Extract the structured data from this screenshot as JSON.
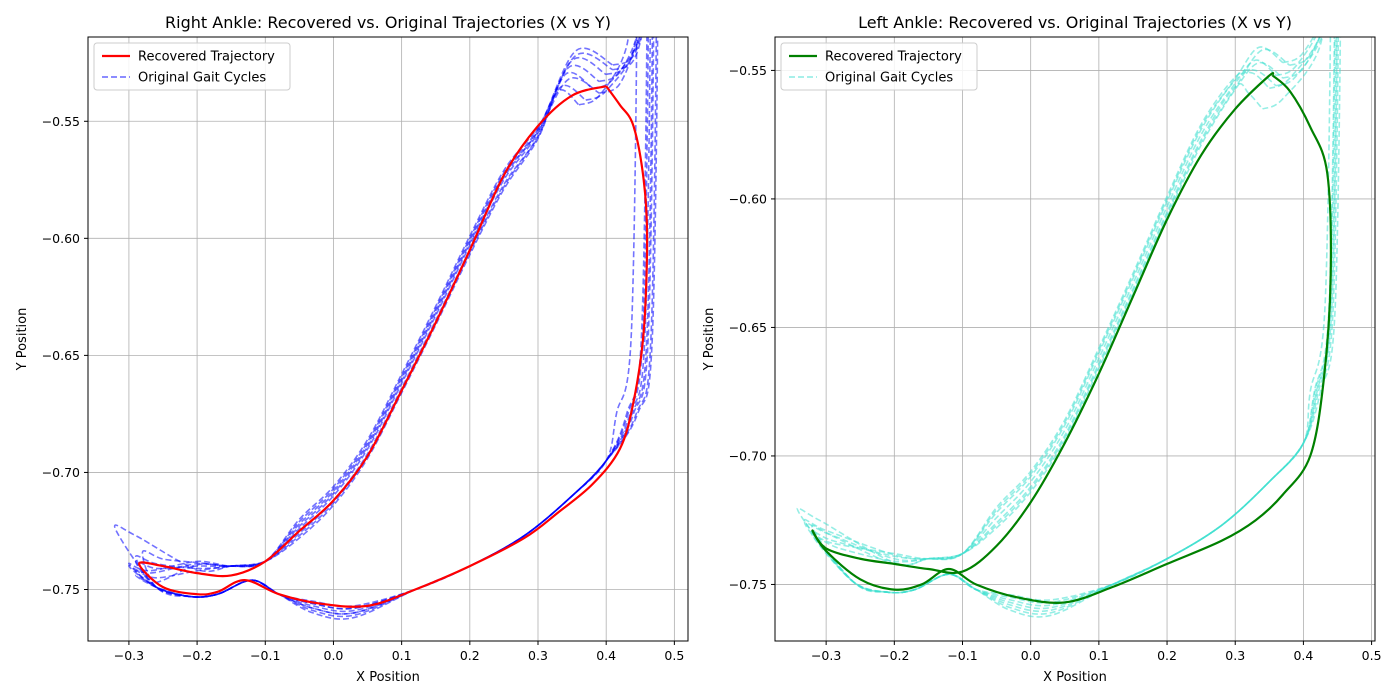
{
  "chart_data": [
    {
      "type": "line",
      "title": "Right Ankle: Recovered vs. Original Trajectories (X vs Y)",
      "xlabel": "X Position",
      "ylabel": "Y Position",
      "xlim": [
        -0.36,
        0.52
      ],
      "ylim": [
        -0.772,
        -0.514
      ],
      "xticks": [
        "−0.3",
        "−0.2",
        "−0.1",
        "0.0",
        "0.1",
        "0.2",
        "0.3",
        "0.4",
        "0.5"
      ],
      "xtick_values": [
        -0.3,
        -0.2,
        -0.1,
        0.0,
        0.1,
        0.2,
        0.3,
        0.4,
        0.5
      ],
      "yticks": [
        "−0.75",
        "−0.70",
        "−0.65",
        "−0.60",
        "−0.55"
      ],
      "ytick_values": [
        -0.75,
        -0.7,
        -0.65,
        -0.6,
        -0.55
      ],
      "grid": true,
      "legend_position": "top-left",
      "legend": [
        "Recovered Trajectory",
        "Original Gait Cycles"
      ],
      "series": [
        {
          "name": "Recovered Trajectory",
          "color": "#ff0000",
          "style": "solid",
          "points": [
            [
              0.4,
              -0.535
            ],
            [
              0.42,
              -0.543
            ],
            [
              0.44,
              -0.552
            ],
            [
              0.455,
              -0.575
            ],
            [
              0.46,
              -0.6
            ],
            [
              0.455,
              -0.64
            ],
            [
              0.44,
              -0.67
            ],
            [
              0.42,
              -0.69
            ],
            [
              0.38,
              -0.705
            ],
            [
              0.33,
              -0.717
            ],
            [
              0.28,
              -0.728
            ],
            [
              0.2,
              -0.74
            ],
            [
              0.12,
              -0.75
            ],
            [
              0.05,
              -0.757
            ],
            [
              -0.02,
              -0.756
            ],
            [
              -0.08,
              -0.752
            ],
            [
              -0.13,
              -0.746
            ],
            [
              -0.17,
              -0.751
            ],
            [
              -0.2,
              -0.752
            ],
            [
              -0.25,
              -0.749
            ],
            [
              -0.285,
              -0.739
            ],
            [
              -0.25,
              -0.74
            ],
            [
              -0.2,
              -0.743
            ],
            [
              -0.15,
              -0.744
            ],
            [
              -0.1,
              -0.738
            ],
            [
              -0.05,
              -0.725
            ],
            [
              0.0,
              -0.712
            ],
            [
              0.05,
              -0.693
            ],
            [
              0.1,
              -0.665
            ],
            [
              0.15,
              -0.636
            ],
            [
              0.2,
              -0.605
            ],
            [
              0.25,
              -0.573
            ],
            [
              0.3,
              -0.552
            ],
            [
              0.35,
              -0.539
            ],
            [
              0.4,
              -0.535
            ]
          ]
        },
        {
          "name": "Original Gait Cycles",
          "color": "#0000ff",
          "style": "dashed",
          "cycles": [
            {
              "bottom_y": -0.757,
              "loop_x": -0.29,
              "loop_y": -0.738,
              "top_x": 0.39,
              "top_y": -0.533,
              "right_x": 0.465,
              "upper_offset": 0.0
            },
            {
              "bottom_y": -0.758,
              "loop_x": -0.29,
              "loop_y": -0.736,
              "top_x": 0.4,
              "top_y": -0.53,
              "right_x": 0.47,
              "upper_offset": -0.002
            },
            {
              "bottom_y": -0.76,
              "loop_x": -0.28,
              "loop_y": -0.734,
              "top_x": 0.41,
              "top_y": -0.528,
              "right_x": 0.474,
              "upper_offset": 0.003
            },
            {
              "bottom_y": -0.761,
              "loop_x": -0.29,
              "loop_y": -0.742,
              "top_x": 0.38,
              "top_y": -0.536,
              "right_x": 0.468,
              "upper_offset": -0.004
            },
            {
              "bottom_y": -0.759,
              "loop_x": -0.3,
              "loop_y": -0.739,
              "top_x": 0.37,
              "top_y": -0.541,
              "right_x": 0.462,
              "upper_offset": 0.004
            },
            {
              "bottom_y": -0.762,
              "loop_x": -0.29,
              "loop_y": -0.744,
              "top_x": 0.39,
              "top_y": -0.538,
              "right_x": 0.46,
              "upper_offset": 0.001
            },
            {
              "bottom_y": -0.758,
              "loop_x": -0.32,
              "loop_y": -0.724,
              "top_x": 0.36,
              "top_y": -0.543,
              "right_x": 0.445,
              "upper_offset": -0.003
            },
            {
              "bottom_y": -0.76,
              "loop_x": -0.3,
              "loop_y": -0.74,
              "top_x": 0.41,
              "top_y": -0.526,
              "right_x": 0.476,
              "upper_offset": 0.002
            }
          ]
        }
      ]
    },
    {
      "type": "line",
      "title": "Left Ankle: Recovered vs. Original Trajectories (X vs Y)",
      "xlabel": "X Position",
      "ylabel": "Y Position",
      "xlim": [
        -0.375,
        0.505
      ],
      "ylim": [
        -0.772,
        -0.537
      ],
      "xticks": [
        "−0.3",
        "−0.2",
        "−0.1",
        "0.0",
        "0.1",
        "0.2",
        "0.3",
        "0.4",
        "0.5"
      ],
      "xtick_values": [
        -0.3,
        -0.2,
        -0.1,
        0.0,
        0.1,
        0.2,
        0.3,
        0.4,
        0.5
      ],
      "yticks": [
        "−0.75",
        "−0.70",
        "−0.65",
        "−0.60",
        "−0.55"
      ],
      "ytick_values": [
        -0.75,
        -0.7,
        -0.65,
        -0.6,
        -0.55
      ],
      "grid": true,
      "legend_position": "top-left",
      "legend": [
        "Recovered Trajectory",
        "Original Gait Cycles"
      ],
      "series": [
        {
          "name": "Recovered Trajectory",
          "color": "#008000",
          "style": "solid",
          "points": [
            [
              0.355,
              -0.552
            ],
            [
              0.38,
              -0.558
            ],
            [
              0.41,
              -0.572
            ],
            [
              0.435,
              -0.59
            ],
            [
              0.44,
              -0.63
            ],
            [
              0.43,
              -0.67
            ],
            [
              0.41,
              -0.7
            ],
            [
              0.37,
              -0.715
            ],
            [
              0.33,
              -0.725
            ],
            [
              0.28,
              -0.733
            ],
            [
              0.2,
              -0.742
            ],
            [
              0.12,
              -0.751
            ],
            [
              0.05,
              -0.757
            ],
            [
              -0.02,
              -0.755
            ],
            [
              -0.08,
              -0.75
            ],
            [
              -0.12,
              -0.744
            ],
            [
              -0.16,
              -0.75
            ],
            [
              -0.2,
              -0.752
            ],
            [
              -0.25,
              -0.748
            ],
            [
              -0.3,
              -0.737
            ],
            [
              -0.32,
              -0.729
            ],
            [
              -0.3,
              -0.736
            ],
            [
              -0.25,
              -0.74
            ],
            [
              -0.2,
              -0.742
            ],
            [
              -0.15,
              -0.744
            ],
            [
              -0.1,
              -0.745
            ],
            [
              -0.05,
              -0.735
            ],
            [
              0.0,
              -0.718
            ],
            [
              0.05,
              -0.695
            ],
            [
              0.1,
              -0.668
            ],
            [
              0.15,
              -0.638
            ],
            [
              0.2,
              -0.608
            ],
            [
              0.25,
              -0.583
            ],
            [
              0.3,
              -0.565
            ],
            [
              0.35,
              -0.552
            ],
            [
              0.355,
              -0.552
            ]
          ]
        },
        {
          "name": "Original Gait Cycles",
          "color": "#40e0d0",
          "style": "dashed",
          "cycles": [
            {
              "bottom_y": -0.757,
              "loop_x": -0.32,
              "loop_y": -0.728,
              "top_x": 0.36,
              "top_y": -0.552,
              "right_x": 0.447,
              "upper_offset": 0.0
            },
            {
              "bottom_y": -0.759,
              "loop_x": -0.33,
              "loop_y": -0.726,
              "top_x": 0.37,
              "top_y": -0.547,
              "right_x": 0.452,
              "upper_offset": 0.003
            },
            {
              "bottom_y": -0.761,
              "loop_x": -0.34,
              "loop_y": -0.722,
              "top_x": 0.38,
              "top_y": -0.548,
              "right_x": 0.455,
              "upper_offset": -0.003
            },
            {
              "bottom_y": -0.758,
              "loop_x": -0.32,
              "loop_y": -0.73,
              "top_x": 0.35,
              "top_y": -0.557,
              "right_x": 0.446,
              "upper_offset": 0.002
            },
            {
              "bottom_y": -0.76,
              "loop_x": -0.31,
              "loop_y": -0.733,
              "top_x": 0.34,
              "top_y": -0.565,
              "right_x": 0.44,
              "upper_offset": -0.002
            },
            {
              "bottom_y": -0.756,
              "loop_x": -0.32,
              "loop_y": -0.731,
              "top_x": 0.36,
              "top_y": -0.556,
              "right_x": 0.45,
              "upper_offset": 0.004
            },
            {
              "bottom_y": -0.762,
              "loop_x": -0.33,
              "loop_y": -0.727,
              "top_x": 0.37,
              "top_y": -0.553,
              "right_x": 0.449,
              "upper_offset": -0.004
            }
          ]
        }
      ]
    }
  ]
}
